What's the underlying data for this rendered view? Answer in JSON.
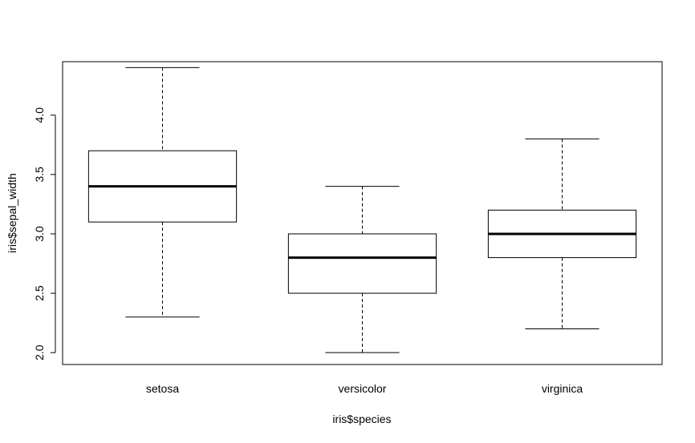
{
  "chart_data": {
    "type": "boxplot",
    "title": "",
    "xlabel": "iris$species",
    "ylabel": "iris$sepal_width",
    "ylim": [
      1.9,
      4.45
    ],
    "yticks": [
      2.0,
      2.5,
      3.0,
      3.5,
      4.0
    ],
    "ytick_labels": [
      "2.0",
      "2.5",
      "3.0",
      "3.5",
      "4.0"
    ],
    "grid": false,
    "categories": [
      "setosa",
      "versicolor",
      "virginica"
    ],
    "boxes": [
      {
        "category": "setosa",
        "whisker_low": 2.3,
        "q1": 3.1,
        "median": 3.4,
        "q3": 3.7,
        "whisker_high": 4.4
      },
      {
        "category": "versicolor",
        "whisker_low": 2.0,
        "q1": 2.5,
        "median": 2.8,
        "q3": 3.0,
        "whisker_high": 3.4
      },
      {
        "category": "virginica",
        "whisker_low": 2.2,
        "q1": 2.8,
        "median": 3.0,
        "q3": 3.2,
        "whisker_high": 3.8
      }
    ]
  }
}
